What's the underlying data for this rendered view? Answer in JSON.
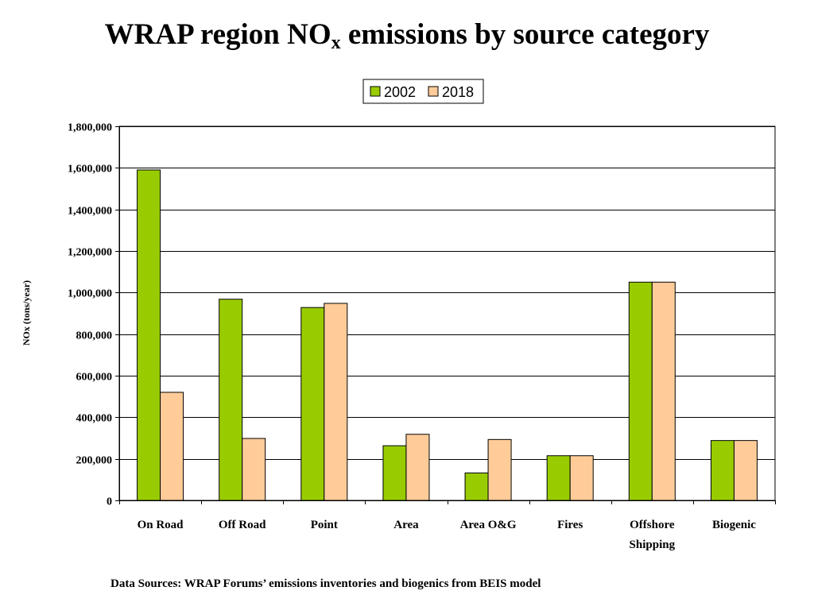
{
  "title": {
    "main": "WRAP region NO",
    "sub": "x",
    "rest": " emissions by source category"
  },
  "footer": "Data Sources: WRAP Forums’ emissions inventories and biogenics from BEIS model",
  "chart_data": {
    "type": "bar",
    "title": "WRAP region NOx emissions by source category",
    "ylabel": "NOx (tons/year)",
    "xlabel": "",
    "ylim": [
      0,
      1800000
    ],
    "yticks": [
      0,
      200000,
      400000,
      600000,
      800000,
      1000000,
      1200000,
      1400000,
      1600000,
      1800000
    ],
    "ytick_labels": [
      "0",
      "200,000",
      "400,000",
      "600,000",
      "800,000",
      "1,000,000",
      "1,200,000",
      "1,400,000",
      "1,600,000",
      "1,800,000"
    ],
    "categories": [
      "On Road",
      "Off Road",
      "Point",
      "Area",
      "Area O&G",
      "Fires",
      "Offshore Shipping",
      "Biogenic"
    ],
    "category_lines": [
      [
        "On Road"
      ],
      [
        "Off Road"
      ],
      [
        "Point"
      ],
      [
        "Area"
      ],
      [
        "Area O&G"
      ],
      [
        "Fires"
      ],
      [
        "Offshore",
        "Shipping"
      ],
      [
        "Biogenic"
      ]
    ],
    "series": [
      {
        "name": "2002",
        "color": "#99cc00",
        "values": [
          1590000,
          968000,
          928000,
          263000,
          132000,
          215000,
          1050000,
          288000
        ]
      },
      {
        "name": "2018",
        "color": "#ffcc99",
        "values": [
          520000,
          298000,
          948000,
          318000,
          293000,
          215000,
          1050000,
          288000
        ]
      }
    ],
    "grid": true,
    "legend_position": "top-center"
  }
}
